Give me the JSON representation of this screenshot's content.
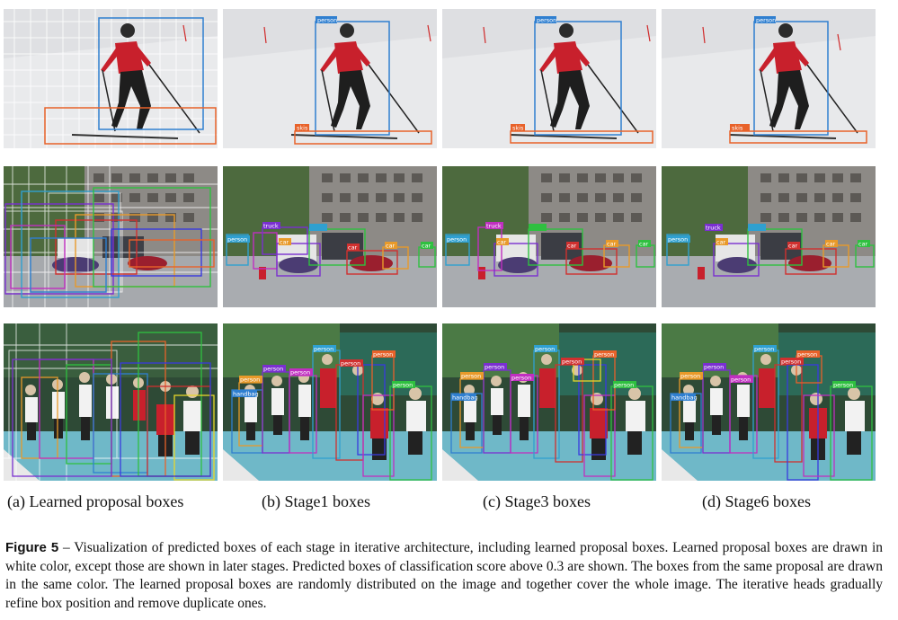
{
  "figure": {
    "sublabels": [
      "(a) Learned proposal boxes",
      "(b) Stage1 boxes",
      "(c) Stage3 boxes",
      "(d) Stage6 boxes"
    ],
    "caption_label": "Figure 5",
    "caption_text": "– Visualization of predicted boxes of each stage in iterative architecture, including learned proposal boxes. Learned proposal boxes are drawn in white color, except those are shown in later stages. Predicted boxes of classification score above 0.3 are shown. The boxes from the same proposal are drawn in the same color. The learned proposal boxes are randomly distributed on the image and together cover the whole image. The iterative heads gradually refine box position and remove duplicate ones."
  },
  "labels": {
    "person": "person",
    "skis": "skis",
    "car": "car",
    "truck": "truck",
    "handbag": "handbag"
  }
}
